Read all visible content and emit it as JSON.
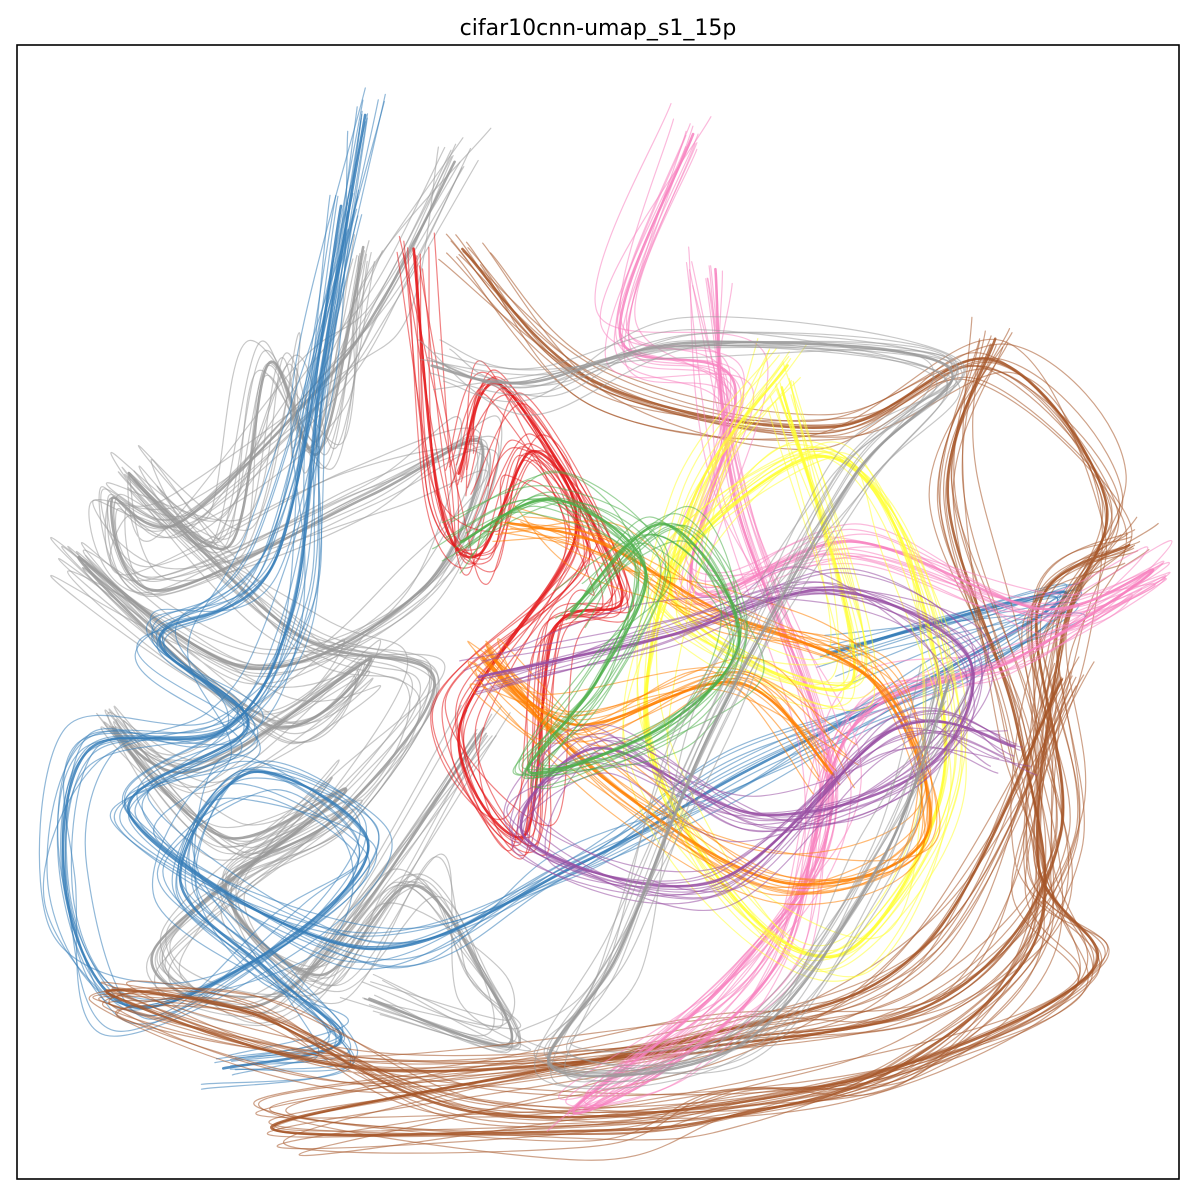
{
  "chart_data": {
    "type": "line",
    "title": "cifar10cnn-umap_s1_15p",
    "xlabel": "",
    "ylabel": "",
    "axes_ticks": false,
    "grid": false,
    "legend": "none",
    "xlim": [
      0,
      100
    ],
    "ylim": [
      0,
      100
    ],
    "series": [
      {
        "color": "#999999",
        "values": [
          [
            38,
            90
          ],
          [
            32,
            78
          ],
          [
            26,
            70
          ],
          [
            14,
            58
          ],
          [
            8,
            60
          ],
          [
            12,
            52
          ],
          [
            30,
            60
          ],
          [
            40,
            65
          ],
          [
            35,
            52
          ],
          [
            20,
            45
          ],
          [
            5,
            55
          ],
          [
            22,
            40
          ],
          [
            30,
            46
          ],
          [
            15,
            36
          ],
          [
            8,
            40
          ],
          [
            18,
            30
          ],
          [
            28,
            34
          ],
          [
            12,
            20
          ],
          [
            20,
            15
          ],
          [
            28,
            22
          ],
          [
            40,
            40
          ]
        ]
      },
      {
        "color": "#999999",
        "values": [
          [
            30,
            82
          ],
          [
            26,
            64
          ],
          [
            22,
            72
          ],
          [
            18,
            56
          ],
          [
            10,
            62
          ],
          [
            24,
            48
          ],
          [
            36,
            44
          ],
          [
            28,
            32
          ],
          [
            18,
            26
          ],
          [
            26,
            18
          ],
          [
            34,
            26
          ],
          [
            40,
            18
          ],
          [
            42,
            12
          ],
          [
            30,
            16
          ]
        ]
      },
      {
        "color": "#377eb8",
        "values": [
          [
            30,
            94
          ],
          [
            26,
            70
          ],
          [
            24,
            50
          ],
          [
            18,
            40
          ],
          [
            6,
            38
          ],
          [
            4,
            25
          ],
          [
            10,
            15
          ],
          [
            24,
            22
          ],
          [
            30,
            30
          ],
          [
            20,
            36
          ],
          [
            14,
            26
          ],
          [
            22,
            18
          ],
          [
            28,
            12
          ],
          [
            18,
            10
          ]
        ]
      },
      {
        "color": "#377eb8",
        "values": [
          [
            28,
            86
          ],
          [
            22,
            55
          ],
          [
            12,
            48
          ],
          [
            20,
            40
          ],
          [
            10,
            32
          ],
          [
            30,
            20
          ],
          [
            48,
            28
          ],
          [
            62,
            36
          ],
          [
            80,
            45
          ],
          [
            90,
            52
          ],
          [
            70,
            46
          ]
        ]
      },
      {
        "color": "#e41a1c",
        "values": [
          [
            34,
            82
          ],
          [
            36,
            60
          ],
          [
            40,
            55
          ],
          [
            44,
            64
          ],
          [
            48,
            56
          ],
          [
            38,
            40
          ],
          [
            44,
            30
          ],
          [
            46,
            48
          ],
          [
            52,
            52
          ],
          [
            42,
            70
          ],
          [
            38,
            62
          ]
        ]
      },
      {
        "color": "#a65628",
        "values": [
          [
            38,
            82
          ],
          [
            50,
            70
          ],
          [
            70,
            66
          ],
          [
            84,
            72
          ],
          [
            94,
            60
          ],
          [
            90,
            48
          ],
          [
            88,
            28
          ],
          [
            92,
            18
          ],
          [
            70,
            8
          ],
          [
            40,
            6
          ],
          [
            20,
            15
          ],
          [
            8,
            16
          ],
          [
            30,
            10
          ],
          [
            60,
            12
          ],
          [
            80,
            16
          ],
          [
            90,
            30
          ],
          [
            88,
            50
          ],
          [
            96,
            56
          ]
        ]
      },
      {
        "color": "#a65628",
        "values": [
          [
            84,
            74
          ],
          [
            80,
            60
          ],
          [
            86,
            40
          ],
          [
            88,
            22
          ],
          [
            76,
            10
          ],
          [
            62,
            6
          ],
          [
            50,
            4
          ],
          [
            22,
            5
          ],
          [
            58,
            12
          ],
          [
            78,
            20
          ],
          [
            90,
            44
          ]
        ]
      },
      {
        "color": "#f781bf",
        "values": [
          [
            58,
            92
          ],
          [
            52,
            74
          ],
          [
            62,
            70
          ],
          [
            58,
            52
          ],
          [
            72,
            56
          ],
          [
            88,
            50
          ],
          [
            98,
            54
          ],
          [
            86,
            46
          ],
          [
            72,
            40
          ],
          [
            66,
            20
          ],
          [
            56,
            10
          ],
          [
            48,
            6
          ],
          [
            62,
            18
          ],
          [
            70,
            34
          ],
          [
            62,
            60
          ],
          [
            60,
            80
          ]
        ]
      },
      {
        "color": "#ffff33",
        "values": [
          [
            66,
            72
          ],
          [
            58,
            60
          ],
          [
            54,
            40
          ],
          [
            62,
            24
          ],
          [
            72,
            20
          ],
          [
            80,
            36
          ],
          [
            76,
            56
          ],
          [
            68,
            64
          ],
          [
            56,
            52
          ],
          [
            72,
            44
          ],
          [
            66,
            70
          ]
        ]
      },
      {
        "color": "#ff7f00",
        "values": [
          [
            42,
            58
          ],
          [
            50,
            56
          ],
          [
            60,
            50
          ],
          [
            74,
            44
          ],
          [
            78,
            30
          ],
          [
            66,
            26
          ],
          [
            52,
            34
          ],
          [
            40,
            46
          ],
          [
            48,
            40
          ],
          [
            62,
            44
          ],
          [
            70,
            36
          ]
        ]
      },
      {
        "color": "#984ea3",
        "values": [
          [
            40,
            44
          ],
          [
            56,
            48
          ],
          [
            70,
            52
          ],
          [
            82,
            46
          ],
          [
            78,
            36
          ],
          [
            64,
            32
          ],
          [
            50,
            38
          ],
          [
            44,
            30
          ],
          [
            60,
            26
          ],
          [
            76,
            40
          ],
          [
            86,
            38
          ]
        ]
      },
      {
        "color": "#4daf4a",
        "values": [
          [
            38,
            56
          ],
          [
            46,
            60
          ],
          [
            54,
            54
          ],
          [
            50,
            44
          ],
          [
            44,
            36
          ],
          [
            56,
            40
          ],
          [
            62,
            48
          ],
          [
            56,
            58
          ],
          [
            48,
            50
          ]
        ]
      },
      {
        "color": "#999999",
        "values": [
          [
            36,
            72
          ],
          [
            44,
            70
          ],
          [
            58,
            74
          ],
          [
            80,
            72
          ],
          [
            72,
            62
          ],
          [
            60,
            40
          ],
          [
            52,
            20
          ],
          [
            46,
            10
          ],
          [
            62,
            12
          ],
          [
            74,
            28
          ],
          [
            80,
            44
          ]
        ]
      }
    ]
  }
}
